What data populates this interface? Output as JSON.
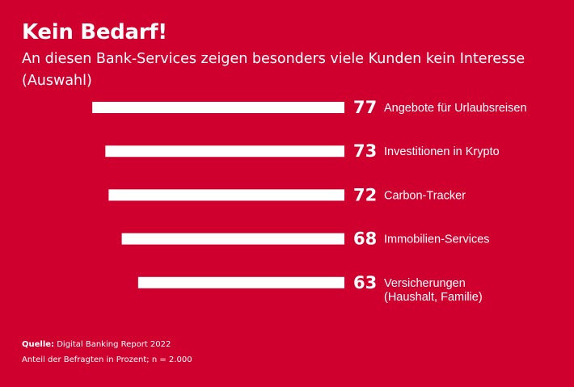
{
  "chart_data": {
    "type": "bar",
    "orientation": "horizontal",
    "title": "Kein Bedarf!",
    "subtitle": "An diesen Bank-Services zeigen besonders viele Kunden kein Interesse (Auswahl)",
    "categories": [
      [
        "Angebote für Urlaubsreisen"
      ],
      [
        "Investitionen in Krypto"
      ],
      [
        "Carbon-Tracker"
      ],
      [
        "Immobilien-Services"
      ],
      [
        "Versicherungen",
        "(Haushalt, Familie)"
      ]
    ],
    "values": [
      77,
      73,
      72,
      68,
      63
    ],
    "unit": "Prozent",
    "xlabel": "",
    "ylabel": "",
    "xlim": [
      0,
      77
    ],
    "grid": false,
    "bar_color": "#FFFFFF",
    "background_color": "#D0002E"
  },
  "footer": {
    "source_label": "Quelle:",
    "source_text": "Digital Banking Report 2022",
    "note": "Anteil der Befragten in Prozent; n = 2.000"
  }
}
